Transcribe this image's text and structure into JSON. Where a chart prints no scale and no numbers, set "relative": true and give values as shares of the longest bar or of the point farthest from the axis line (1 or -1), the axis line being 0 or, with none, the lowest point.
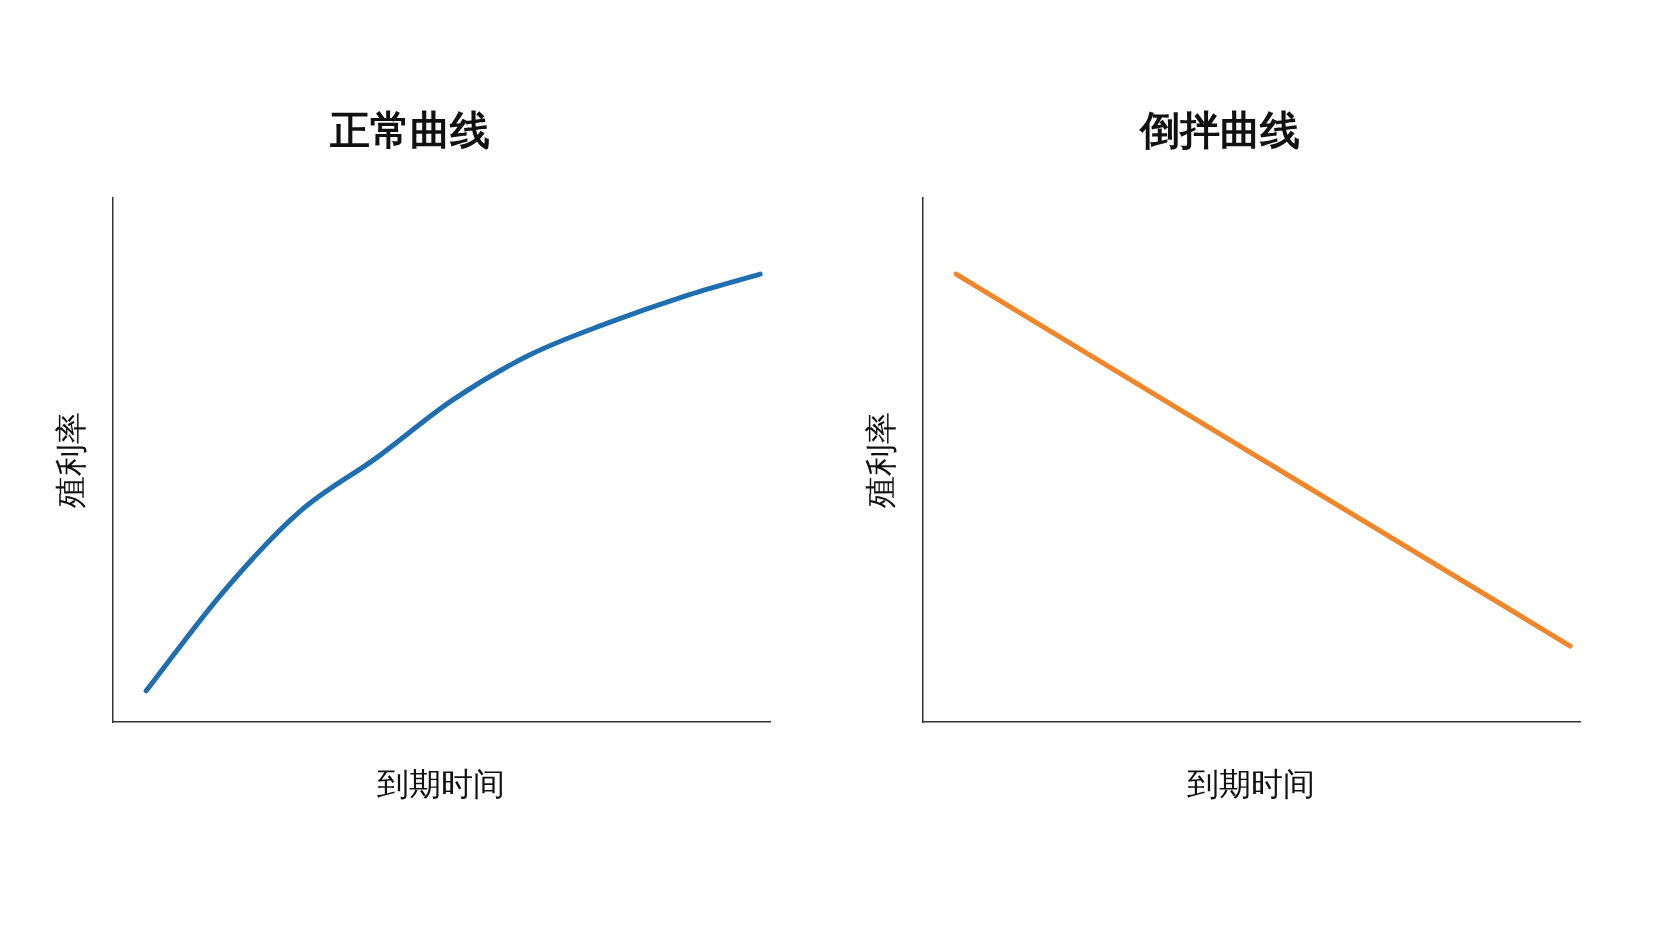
{
  "chart_data": [
    {
      "type": "line",
      "title": "正常曲线",
      "xlabel": "到期时间",
      "ylabel": "殖利率",
      "relative": true,
      "grid": false,
      "legend": false,
      "marker": "none",
      "line_style": "solid",
      "categories": [
        null,
        null,
        null,
        null,
        null,
        null,
        null,
        null,
        null
      ],
      "series": [
        {
          "color": "#1f6fb0",
          "values": [
            0.07,
            0.29,
            0.47,
            0.59,
            0.72,
            0.82,
            0.89,
            0.95,
            1
          ]
        }
      ]
    },
    {
      "type": "line",
      "title": "倒拌曲线",
      "xlabel": "到期时间",
      "ylabel": "殖利率",
      "relative": true,
      "grid": false,
      "legend": false,
      "marker": "none",
      "line_style": "solid",
      "categories": [
        null,
        null
      ],
      "series": [
        {
          "color": "#f0862a",
          "values": [
            1,
            0.17
          ]
        }
      ]
    }
  ]
}
